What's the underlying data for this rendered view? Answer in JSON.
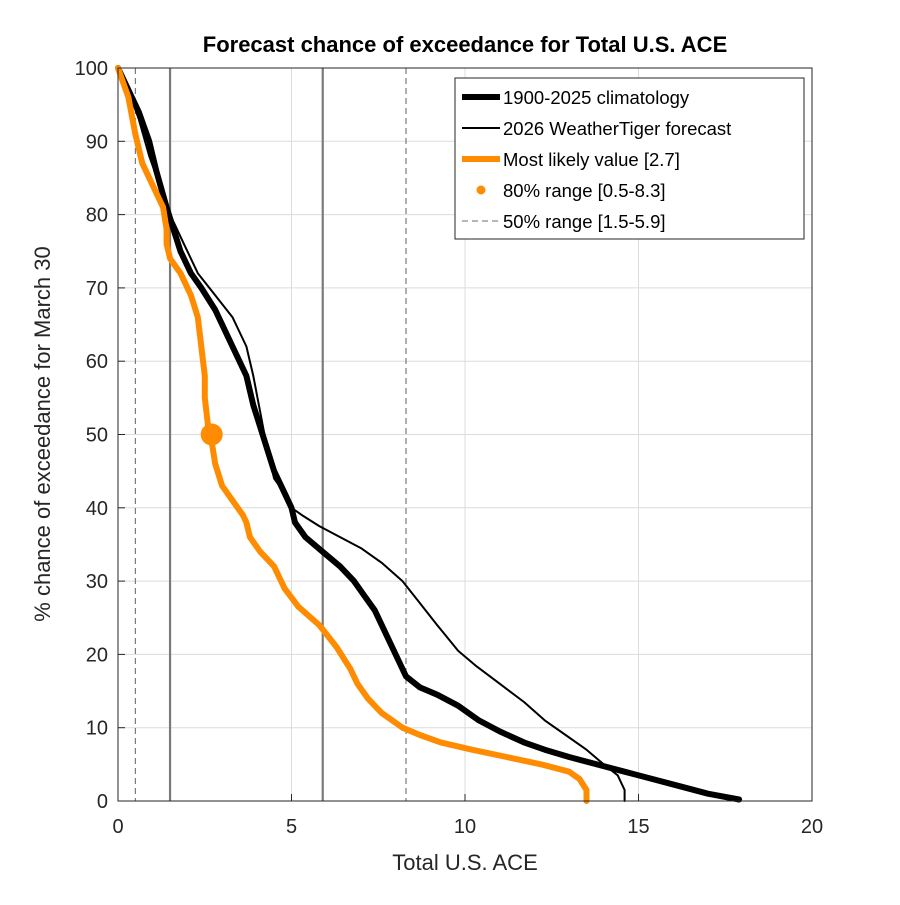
{
  "chart_data": {
    "type": "line",
    "title": "Forecast chance of exceedance for Total U.S. ACE",
    "xlabel": "Total U.S. ACE",
    "ylabel": "% chance of exceedance for March 30",
    "xlim": [
      0,
      20
    ],
    "ylim": [
      0,
      100
    ],
    "xticks": [
      "0",
      "5",
      "10",
      "15",
      "20"
    ],
    "yticks": [
      "0",
      "10",
      "20",
      "30",
      "40",
      "50",
      "60",
      "70",
      "80",
      "90",
      "100"
    ],
    "grid": true,
    "legend_position": "top-right",
    "colors": {
      "climatology": "#000000",
      "forecast": "#000000",
      "orange": "#ff8c00",
      "range_80": "#7a7a7a",
      "range_50": "#6e6e6e"
    },
    "series": [
      {
        "name": "1900-2025 climatology",
        "x": [
          0.0,
          0.3,
          0.6,
          0.9,
          1.1,
          1.4,
          1.6,
          1.8,
          2.1,
          2.4,
          2.8,
          3.1,
          3.4,
          3.7,
          3.9,
          4.1,
          4.3,
          4.5,
          4.8,
          5.0,
          5.1,
          5.4,
          5.9,
          6.4,
          6.8,
          7.1,
          7.4,
          7.7,
          8.0,
          8.3,
          8.7,
          9.2,
          9.8,
          10.4,
          11.0,
          11.7,
          12.3,
          13.0,
          13.8,
          14.6,
          15.4,
          16.2,
          17.0,
          17.9
        ],
        "y": [
          100,
          97,
          94,
          90,
          86,
          81,
          78,
          75,
          72,
          70,
          67,
          64,
          61,
          58,
          54,
          51,
          48,
          45,
          42,
          40,
          38,
          36,
          34,
          32,
          30,
          28,
          26,
          23,
          20,
          17,
          15.5,
          14.5,
          13,
          11,
          9.5,
          8,
          7,
          6,
          5,
          4,
          3,
          2,
          1,
          0.2
        ]
      },
      {
        "name": "2026 WeatherTiger forecast",
        "x": [
          0.0,
          0.3,
          0.6,
          0.9,
          1.2,
          1.5,
          1.9,
          2.3,
          2.8,
          3.3,
          3.7,
          3.9,
          4.1,
          4.3,
          4.5,
          4.8,
          5.0,
          5.3,
          5.8,
          6.4,
          7.0,
          7.6,
          8.2,
          8.7,
          9.2,
          9.8,
          10.3,
          11.0,
          11.7,
          12.3,
          12.9,
          13.5,
          14.0,
          14.4,
          14.6,
          14.6
        ],
        "y": [
          100,
          97,
          93,
          88,
          84,
          80,
          76,
          72,
          69,
          66,
          62,
          58,
          53,
          48,
          44,
          42,
          40,
          39,
          37.5,
          36,
          34.5,
          32.5,
          30,
          27,
          24,
          20.5,
          18.5,
          16,
          13.5,
          11,
          9,
          7,
          5,
          3.5,
          1.5,
          0
        ]
      },
      {
        "name": "Most likely value [2.7]",
        "x": [
          0.0,
          0.3,
          0.5,
          0.7,
          1.0,
          1.3,
          1.4,
          1.4,
          1.5,
          1.8,
          2.1,
          2.3,
          2.4,
          2.5,
          2.5,
          2.6,
          2.7,
          2.8,
          3.0,
          3.3,
          3.6,
          3.7,
          3.8,
          4.1,
          4.5,
          4.8,
          5.2,
          5.8,
          6.3,
          6.7,
          6.9,
          7.2,
          7.6,
          8.2,
          8.7,
          9.3,
          10.2,
          11.2,
          12.2,
          13.0,
          13.3,
          13.5,
          13.5
        ],
        "y": [
          100,
          96,
          91,
          87,
          84,
          81,
          78,
          76,
          74,
          72,
          69,
          66,
          62,
          58,
          55,
          51,
          49,
          46,
          43,
          41,
          39,
          38,
          36,
          34,
          32,
          29,
          26.5,
          24,
          21,
          18,
          16,
          14,
          12,
          10,
          9,
          8,
          7,
          6,
          5,
          4,
          3,
          1.5,
          0
        ]
      }
    ],
    "most_likely_point": {
      "x": 2.7,
      "y": 50
    },
    "range_80": [
      0.5,
      8.3
    ],
    "range_50": [
      1.5,
      5.9
    ],
    "legend": [
      {
        "label": "1900-2025 climatology",
        "style": "thick-black"
      },
      {
        "label": "2026 WeatherTiger forecast",
        "style": "thin-black"
      },
      {
        "label": "Most likely value [2.7]",
        "style": "orange-line"
      },
      {
        "label": "80% range [0.5-8.3]",
        "style": "orange-dot"
      },
      {
        "label": "50% range [1.5-5.9]",
        "style": "dashed-gray"
      }
    ]
  }
}
